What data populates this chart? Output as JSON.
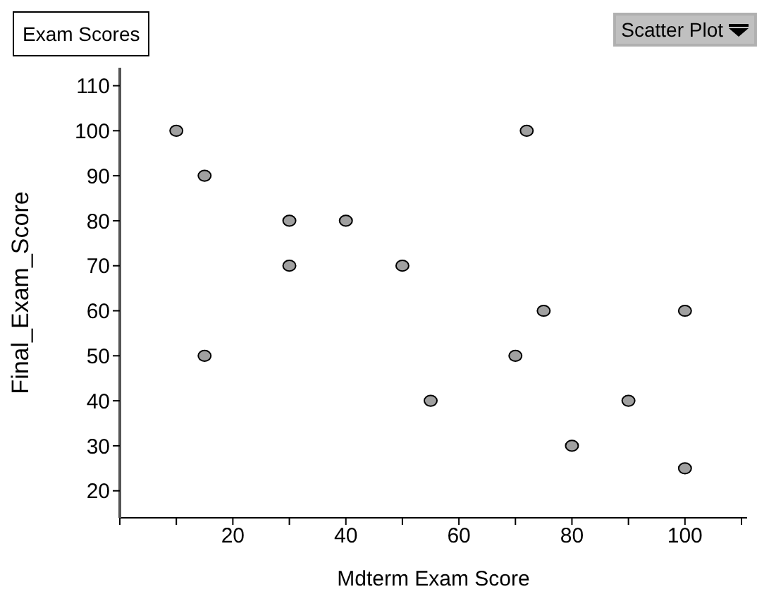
{
  "chart_data": {
    "type": "scatter",
    "title": "Exam Scores",
    "xlabel": "Mdterm Exam Score",
    "ylabel": "Final_Exam_Score",
    "annotations": [
      "Scatter Plot"
    ],
    "x": [
      10,
      15,
      15,
      30,
      30,
      40,
      50,
      55,
      70,
      72,
      75,
      80,
      90,
      100,
      100
    ],
    "values": [
      100,
      90,
      50,
      80,
      70,
      80,
      70,
      40,
      50,
      100,
      60,
      30,
      40,
      60,
      25
    ],
    "color": "#a0a0a0",
    "marker": "circle",
    "grid": false,
    "legend": false,
    "xlim": [
      0,
      111
    ],
    "xticks": [
      {
        "value": 0,
        "label": null
      },
      {
        "value": 10,
        "label": null
      },
      20,
      {
        "value": 30,
        "label": null
      },
      40,
      {
        "value": 50,
        "label": null
      },
      60,
      {
        "value": 70,
        "label": null
      },
      80,
      {
        "value": 90,
        "label": null
      },
      100,
      {
        "value": 110,
        "label": null
      }
    ],
    "ylim": [
      14,
      114
    ],
    "yticks": [
      20,
      30,
      40,
      50,
      60,
      70,
      80,
      90,
      100,
      110
    ]
  }
}
